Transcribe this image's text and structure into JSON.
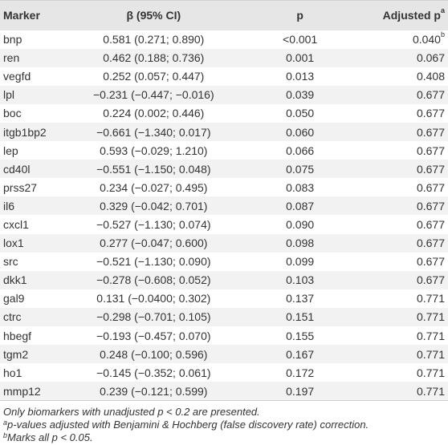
{
  "headers": {
    "marker": "Marker",
    "beta": "β (95% CI)",
    "p": "p",
    "adjusted": "Adjusted p",
    "adjusted_sup": "a"
  },
  "rows": [
    {
      "marker": "bnp",
      "beta": "0.581 (0.271; 0.890)",
      "p": "<0.001",
      "adj": "0.040",
      "adj_sup": "b"
    },
    {
      "marker": "ren",
      "beta": "0.462 (0.188; 0.736)",
      "p": "0.001",
      "adj": "0.067",
      "adj_sup": ""
    },
    {
      "marker": "vegfd",
      "beta": "0.252 (0.057; 0.447)",
      "p": "0.013",
      "adj": "0.408",
      "adj_sup": ""
    },
    {
      "marker": "lpl",
      "beta": "−0.231 (−0.447; −0.016)",
      "p": "0.039",
      "adj": "0.677",
      "adj_sup": ""
    },
    {
      "marker": "boc",
      "beta": "0.224 (0.002; 0.446)",
      "p": "0.050",
      "adj": "0.677",
      "adj_sup": ""
    },
    {
      "marker": "itgb1bp2",
      "beta": "−0.661 (−1.340; 0.017)",
      "p": "0.060",
      "adj": "0.677",
      "adj_sup": ""
    },
    {
      "marker": "lep",
      "beta": "0.593 (−0.029; 1.210)",
      "p": "0.066",
      "adj": "0.677",
      "adj_sup": ""
    },
    {
      "marker": "cd40l",
      "beta": "−0.551 (−1.150; 0.048)",
      "p": "0.075",
      "adj": "0.677",
      "adj_sup": ""
    },
    {
      "marker": "prss27",
      "beta": "0.234 (−0.027; 0.495)",
      "p": "0.083",
      "adj": "0.677",
      "adj_sup": ""
    },
    {
      "marker": "il6",
      "beta": "0.329 (−0.042; 0.701)",
      "p": "0.087",
      "adj": "0.677",
      "adj_sup": ""
    },
    {
      "marker": "cxcl1",
      "beta": "−0.527 (−1.130; 0.074)",
      "p": "0.090",
      "adj": "0.677",
      "adj_sup": ""
    },
    {
      "marker": "lox1",
      "beta": "0.277 (−0.047; 0.600)",
      "p": "0.098",
      "adj": "0.677",
      "adj_sup": ""
    },
    {
      "marker": "src",
      "beta": "−0.521 (−1.130; 0.090)",
      "p": "0.099",
      "adj": "0.677",
      "adj_sup": ""
    },
    {
      "marker": "dkk1",
      "beta": "−0.278 (−0.608; 0.052)",
      "p": "0.103",
      "adj": "0.677",
      "adj_sup": ""
    },
    {
      "marker": "gal9",
      "beta": "0.131 (−0.0400; 0.302)",
      "p": "0.137",
      "adj": "0.771",
      "adj_sup": ""
    },
    {
      "marker": "ctrc",
      "beta": "−0.298 (−0.701; 0.105)",
      "p": "0.151",
      "adj": "0.771",
      "adj_sup": ""
    },
    {
      "marker": "hbegf",
      "beta": "−0.193 (−0.457; 0.070)",
      "p": "0.155",
      "adj": "0.771",
      "adj_sup": ""
    },
    {
      "marker": "tgm2",
      "beta": "0.248 (−0.100; 0.596)",
      "p": "0.167",
      "adj": "0.771",
      "adj_sup": ""
    },
    {
      "marker": "ho1",
      "beta": "−0.145 (−0.352; 0.061)",
      "p": "0.172",
      "adj": "0.771",
      "adj_sup": ""
    },
    {
      "marker": "mmp12",
      "beta": "0.239 (−0.121; 0.599)",
      "p": "0.197",
      "adj": "0.771",
      "adj_sup": ""
    }
  ],
  "footnotes": {
    "note1": "Only biomarkers with unadjusted p < 0.2 are presented.",
    "note2_sup": "a",
    "note2": "p-values adjusted with Benjamini & Hochberg (false discovery rate) correction.",
    "note3_sup": "b",
    "note3": "Marks all p < 0.05."
  }
}
